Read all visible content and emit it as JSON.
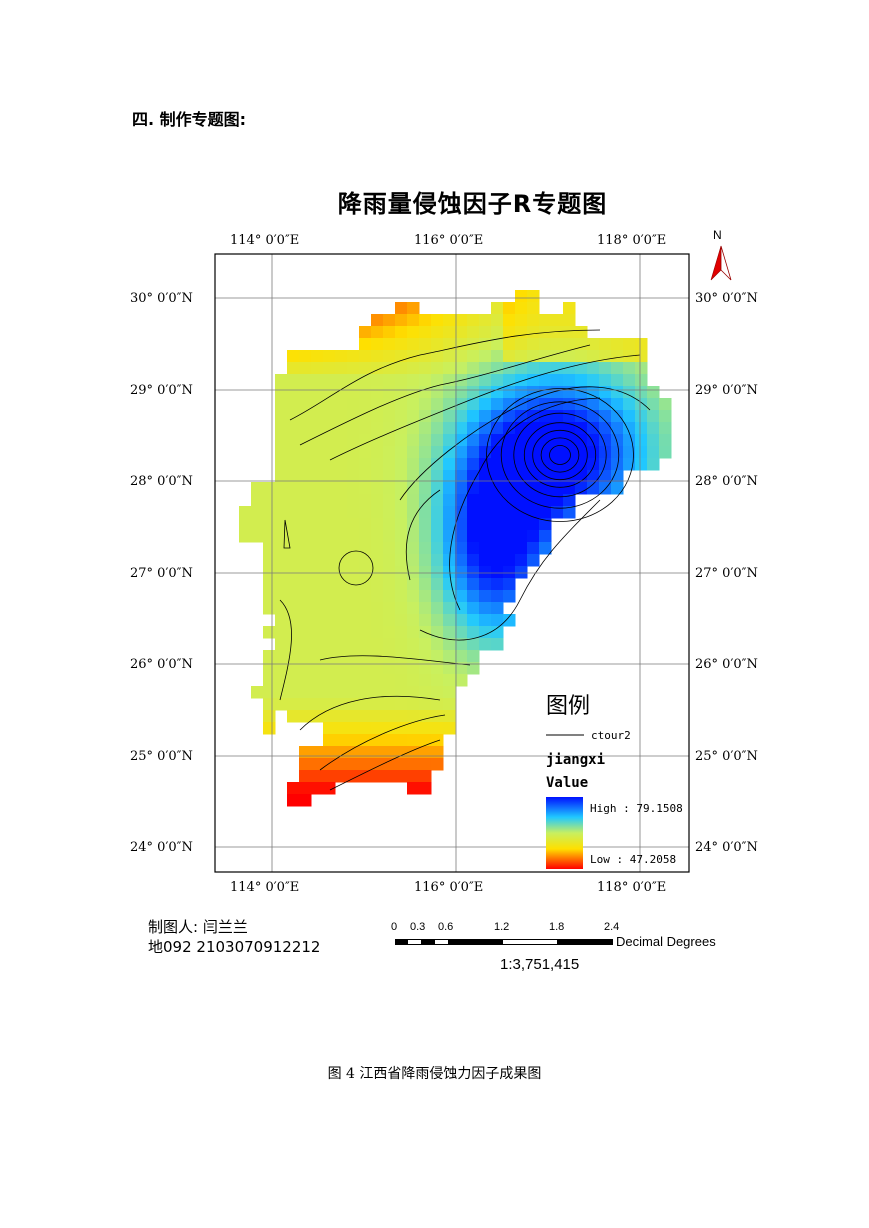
{
  "heading": "四. 制作专题图:",
  "map": {
    "title": "降雨量侵蚀因子R专题图",
    "north": "N",
    "lon_labels": [
      "114° 0′0″E",
      "116° 0′0″E",
      "118° 0′0″E"
    ],
    "lat_labels": [
      "30° 0′0″N",
      "29° 0′0″N",
      "28° 0′0″N",
      "27° 0′0″N",
      "26° 0′0″N",
      "25° 0′0″N",
      "24° 0′0″N"
    ],
    "legend": {
      "title": "图例",
      "line_label": "ctour2",
      "layer": "jiangxi",
      "field": "Value",
      "high": "High : 79.1508",
      "low": "Low : 47.2058",
      "high_color": "#0000ff",
      "low_color": "#ff0000"
    },
    "author": "制图人: 闫兰兰",
    "student": "地092   2103070912212",
    "scale": {
      "ticks": [
        "0",
        "0.3",
        "0.6",
        "1.2",
        "1.8",
        "2.4"
      ],
      "unit": "Decimal Degrees",
      "ratio": "1:3,751,415"
    }
  },
  "caption": "图 4    江西省降雨侵蚀力因子成果图"
}
